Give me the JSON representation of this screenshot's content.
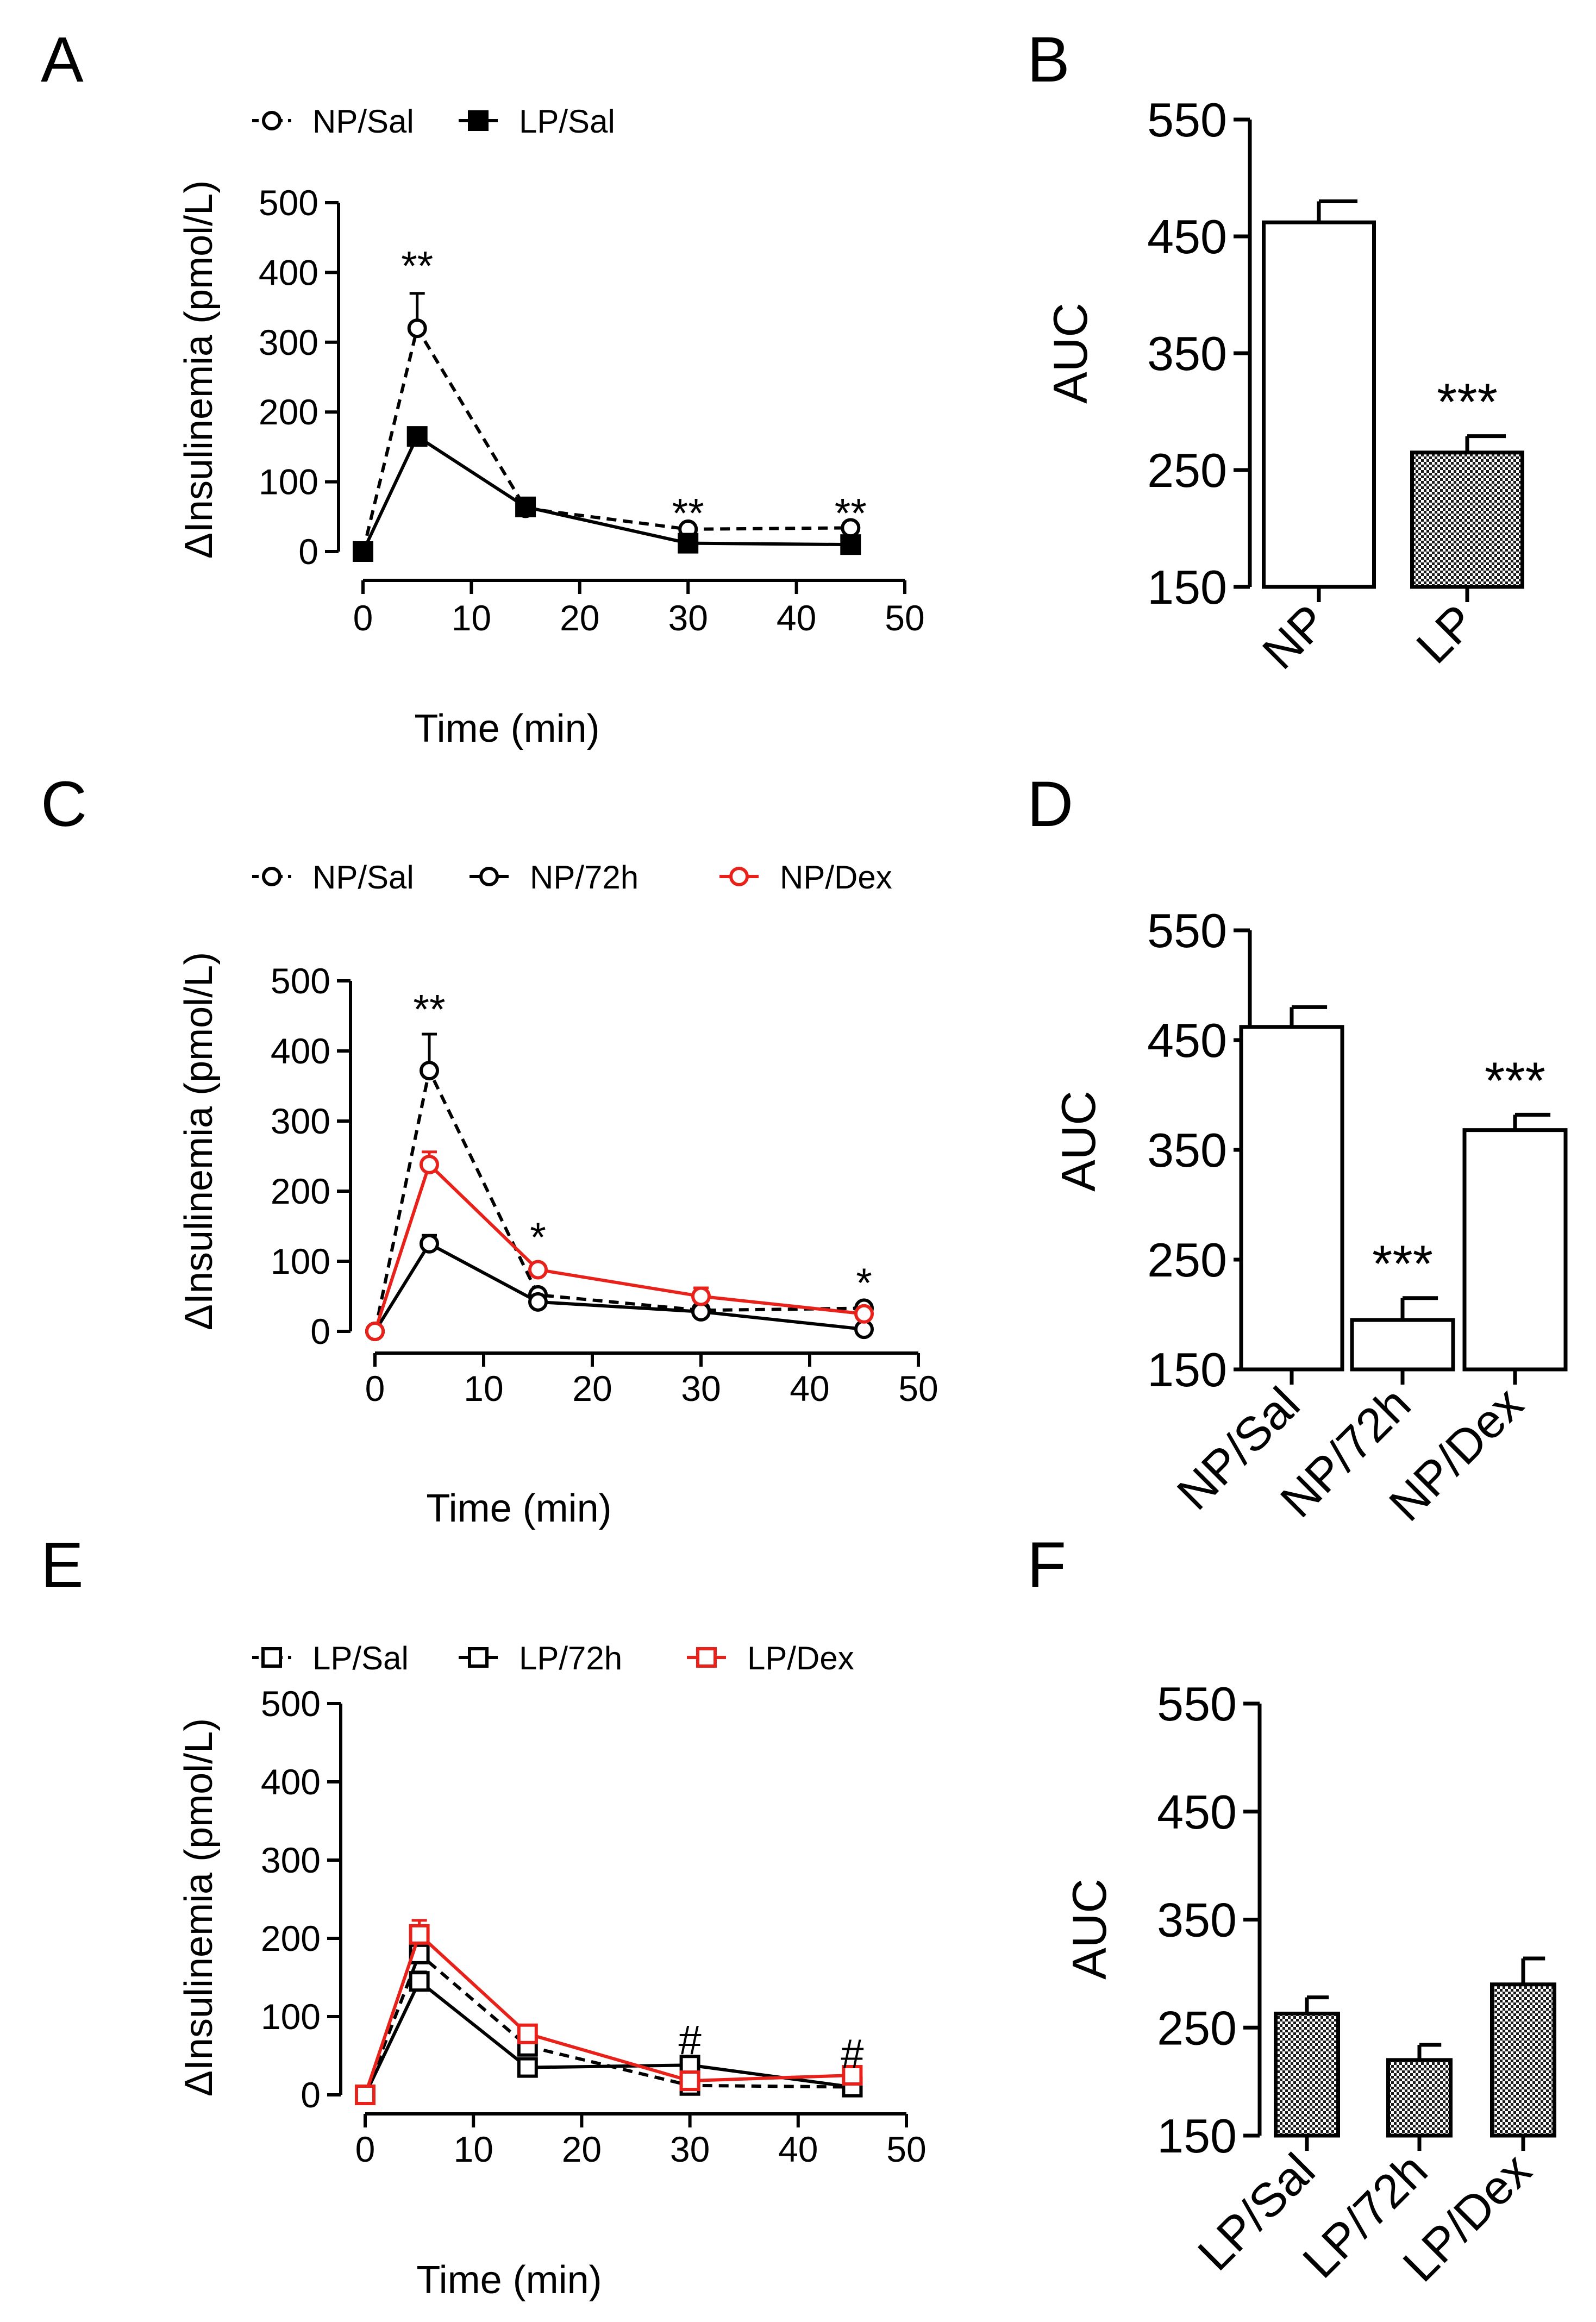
{
  "chart_data": [
    {
      "panel": "A",
      "type": "line",
      "xlabel": "Time (min)",
      "ylabel": "ΔInsulinemia (pmol/L)",
      "xlim": [
        0,
        50
      ],
      "xticks": [
        0,
        10,
        20,
        30,
        40,
        50
      ],
      "ylim": [
        0,
        500
      ],
      "yticks": [
        0,
        100,
        200,
        300,
        400,
        500
      ],
      "legend_position": "top",
      "series": [
        {
          "name": "NP/Sal",
          "color": "#000000",
          "dash": true,
          "marker": "circle-open",
          "x": [
            0,
            5,
            15,
            30,
            45
          ],
          "values": [
            0,
            320,
            62,
            32,
            34
          ],
          "err": [
            0,
            50,
            6,
            4,
            4
          ]
        },
        {
          "name": "LP/Sal",
          "color": "#000000",
          "dash": false,
          "marker": "square-filled",
          "x": [
            0,
            5,
            15,
            30,
            45
          ],
          "values": [
            0,
            165,
            64,
            12,
            10
          ],
          "err": [
            0,
            12,
            6,
            3,
            3
          ]
        }
      ],
      "annotations": [
        {
          "text": "**",
          "x": 5,
          "y": 420
        },
        {
          "text": "**",
          "x": 30,
          "y": 66
        },
        {
          "text": "**",
          "x": 45,
          "y": 66
        }
      ]
    },
    {
      "panel": "B",
      "type": "bar",
      "ylabel": "AUC",
      "ylim": [
        150,
        550
      ],
      "yticks": [
        150,
        250,
        350,
        450,
        550
      ],
      "categories": [
        "NP",
        "LP"
      ],
      "values": [
        462,
        265
      ],
      "err": [
        18,
        14
      ],
      "fills": [
        "white",
        "checker"
      ],
      "annotations": [
        {
          "text": "***",
          "category": "LP"
        }
      ]
    },
    {
      "panel": "C",
      "type": "line",
      "xlabel": "Time (min)",
      "ylabel": "ΔInsulinemia (pmol/L)",
      "xlim": [
        0,
        50
      ],
      "xticks": [
        0,
        10,
        20,
        30,
        40,
        50
      ],
      "ylim": [
        0,
        500
      ],
      "yticks": [
        0,
        100,
        200,
        300,
        400,
        500
      ],
      "legend_position": "top",
      "series": [
        {
          "name": "NP/Sal",
          "color": "#000000",
          "dash": true,
          "marker": "circle-open",
          "x": [
            0,
            5,
            15,
            30,
            45
          ],
          "values": [
            0,
            372,
            52,
            30,
            33
          ],
          "err": [
            0,
            52,
            5,
            4,
            4
          ]
        },
        {
          "name": "NP/72h",
          "color": "#000000",
          "dash": false,
          "marker": "circle-open",
          "x": [
            0,
            5,
            15,
            30,
            45
          ],
          "values": [
            0,
            125,
            42,
            28,
            3
          ],
          "err": [
            0,
            12,
            4,
            4,
            2
          ]
        },
        {
          "name": "NP/Dex",
          "color": "#e8221b",
          "dash": false,
          "marker": "circle-open",
          "x": [
            0,
            5,
            15,
            30,
            45
          ],
          "values": [
            0,
            238,
            88,
            50,
            25
          ],
          "err": [
            0,
            18,
            5,
            12,
            4
          ]
        }
      ],
      "annotations": [
        {
          "text": "**",
          "x": 5,
          "y": 470
        },
        {
          "text": "*",
          "x": 15,
          "y": 145
        },
        {
          "text": "*",
          "x": 45,
          "y": 80
        }
      ]
    },
    {
      "panel": "D",
      "type": "bar",
      "ylabel": "AUC",
      "ylim": [
        150,
        550
      ],
      "yticks": [
        150,
        250,
        350,
        450,
        550
      ],
      "categories": [
        "NP/Sal",
        "NP/72h",
        "NP/Dex"
      ],
      "values": [
        462,
        195,
        368
      ],
      "err": [
        18,
        20,
        14
      ],
      "fills": [
        "white",
        "white",
        "white"
      ],
      "annotations": [
        {
          "text": "***",
          "category": "NP/72h"
        },
        {
          "text": "***",
          "category": "NP/Dex"
        }
      ]
    },
    {
      "panel": "E",
      "type": "line",
      "xlabel": "Time (min)",
      "ylabel": "ΔInsulinemia (pmol/L)",
      "xlim": [
        0,
        50
      ],
      "xticks": [
        0,
        10,
        20,
        30,
        40,
        50
      ],
      "ylim": [
        0,
        500
      ],
      "yticks": [
        0,
        100,
        200,
        300,
        400,
        500
      ],
      "legend_position": "top",
      "series": [
        {
          "name": "LP/Sal",
          "color": "#000000",
          "dash": true,
          "marker": "square-open",
          "x": [
            0,
            5,
            15,
            30,
            45
          ],
          "values": [
            0,
            180,
            62,
            12,
            10
          ],
          "err": [
            0,
            15,
            6,
            3,
            3
          ]
        },
        {
          "name": "LP/72h",
          "color": "#000000",
          "dash": false,
          "marker": "square-open",
          "x": [
            0,
            5,
            15,
            30,
            45
          ],
          "values": [
            0,
            145,
            35,
            38,
            10
          ],
          "err": [
            0,
            12,
            5,
            5,
            3
          ]
        },
        {
          "name": "LP/Dex",
          "color": "#e8221b",
          "dash": false,
          "marker": "square-open",
          "x": [
            0,
            5,
            15,
            30,
            45
          ],
          "values": [
            0,
            205,
            78,
            18,
            25
          ],
          "err": [
            0,
            18,
            6,
            4,
            5
          ]
        }
      ],
      "annotations": [
        {
          "text": "#",
          "x": 30,
          "y": 80
        },
        {
          "text": "#",
          "x": 45,
          "y": 62
        }
      ]
    },
    {
      "panel": "F",
      "type": "bar",
      "ylabel": "AUC",
      "ylim": [
        150,
        550
      ],
      "yticks": [
        150,
        250,
        350,
        450,
        550
      ],
      "categories": [
        "LP/Sal",
        "LP/72h",
        "LP/Dex"
      ],
      "values": [
        263,
        220,
        290
      ],
      "err": [
        15,
        14,
        24
      ],
      "fills": [
        "checker",
        "checker",
        "checker"
      ],
      "annotations": []
    }
  ]
}
